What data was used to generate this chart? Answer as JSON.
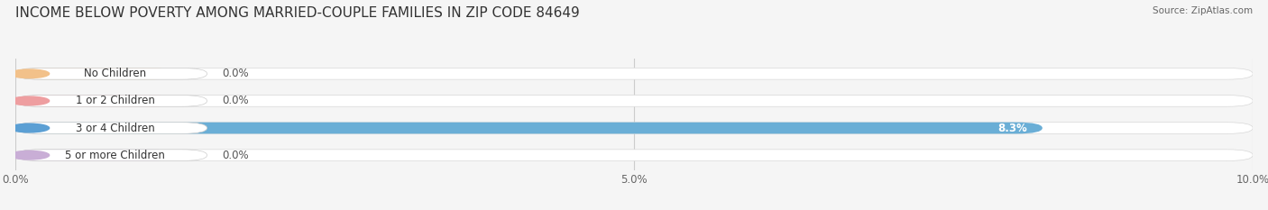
{
  "title": "INCOME BELOW POVERTY AMONG MARRIED-COUPLE FAMILIES IN ZIP CODE 84649",
  "source": "Source: ZipAtlas.com",
  "categories": [
    "No Children",
    "1 or 2 Children",
    "3 or 4 Children",
    "5 or more Children"
  ],
  "values": [
    0.0,
    0.0,
    8.3,
    0.0
  ],
  "bar_colors": [
    "#f2c18a",
    "#ee9ea0",
    "#6aaed6",
    "#c9aed6"
  ],
  "label_bg_colors": [
    "#f2c18a",
    "#ee9ea0",
    "#5b9fd4",
    "#c9aed6"
  ],
  "xlim": [
    0,
    10.0
  ],
  "xtick_labels": [
    "0.0%",
    "5.0%",
    "10.0%"
  ],
  "bar_height": 0.42,
  "background_color": "#f5f5f5",
  "bar_bg_color": "#e6e6e6",
  "bar_bg_color2": "#ffffff",
  "title_fontsize": 11,
  "label_fontsize": 8.5,
  "value_fontsize": 8.5,
  "tick_fontsize": 8.5
}
